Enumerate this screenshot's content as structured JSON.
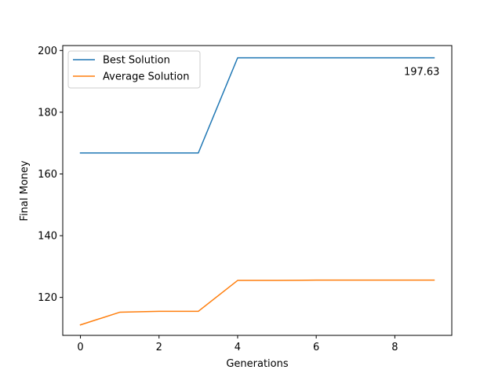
{
  "chart_data": {
    "type": "line",
    "title": "",
    "xlabel": "Generations",
    "ylabel": "Final Money",
    "xlim": [
      -0.45,
      9.45
    ],
    "ylim": [
      107.7,
      201.6
    ],
    "xticks": [
      0,
      2,
      4,
      6,
      8
    ],
    "yticks": [
      120,
      140,
      160,
      180,
      200
    ],
    "grid": false,
    "legend_position": "top-left",
    "x": [
      0,
      1,
      2,
      3,
      4,
      5,
      6,
      7,
      8,
      9
    ],
    "series": [
      {
        "name": "Best Solution",
        "color": "#1f77b4",
        "values": [
          166.8,
          166.8,
          166.8,
          166.8,
          197.63,
          197.63,
          197.63,
          197.63,
          197.63,
          197.63
        ]
      },
      {
        "name": "Average Solution",
        "color": "#ff7f0e",
        "values": [
          111.1,
          115.2,
          115.5,
          115.5,
          125.5,
          125.5,
          125.6,
          125.6,
          125.6,
          125.6
        ]
      }
    ],
    "annotations": [
      {
        "text": "197.63",
        "x": 9,
        "y": 197.63
      }
    ]
  }
}
